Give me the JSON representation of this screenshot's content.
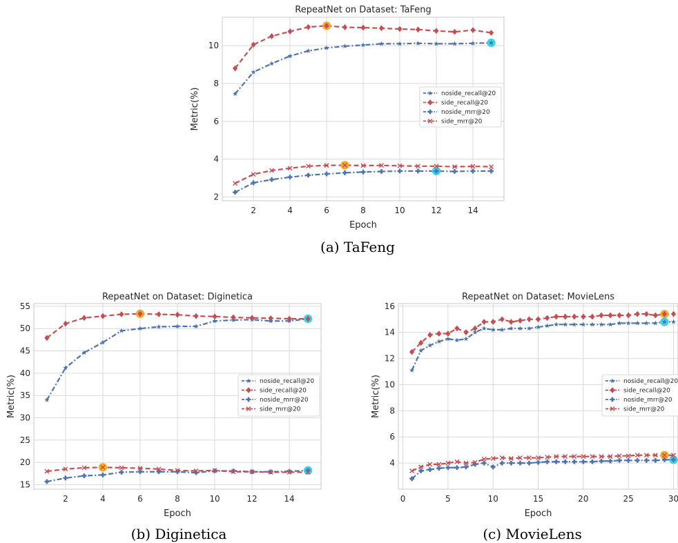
{
  "chart_data": [
    {
      "type": "line",
      "title": "RepeatNet on Dataset: TaFeng",
      "caption": "(a) TaFeng",
      "xlabel": "Epoch",
      "ylabel": "Metric(%)",
      "xlim": [
        0.3,
        15.7
      ],
      "ylim": [
        1.8,
        11.5
      ],
      "xticks": [
        2,
        4,
        6,
        8,
        10,
        12,
        14
      ],
      "yticks": [
        2,
        4,
        6,
        8,
        10
      ],
      "legend_position": "center-right",
      "grid": true,
      "series": [
        {
          "name": "noside_recall@20",
          "color": "#4c72b0",
          "marker": "star",
          "dash": "dashdot",
          "x": [
            1,
            2,
            3,
            4,
            5,
            6,
            7,
            8,
            9,
            10,
            11,
            12,
            13,
            14,
            15
          ],
          "values": [
            7.45,
            8.6,
            9.05,
            9.45,
            9.72,
            9.88,
            9.97,
            10.03,
            10.1,
            10.1,
            10.12,
            10.1,
            10.1,
            10.12,
            10.15
          ]
        },
        {
          "name": "side_recall@20",
          "color": "#c44e52",
          "marker": "diamond",
          "dash": "dashed",
          "x": [
            1,
            2,
            3,
            4,
            5,
            6,
            7,
            8,
            9,
            10,
            11,
            12,
            13,
            14,
            15
          ],
          "values": [
            8.8,
            10.05,
            10.5,
            10.75,
            10.98,
            11.05,
            10.97,
            10.95,
            10.92,
            10.88,
            10.85,
            10.78,
            10.73,
            10.82,
            10.68
          ]
        },
        {
          "name": "noside_mrr@20",
          "color": "#4c72b0",
          "marker": "plus",
          "dash": "dashdot",
          "x": [
            1,
            2,
            3,
            4,
            5,
            6,
            7,
            8,
            9,
            10,
            11,
            12,
            13,
            14,
            15
          ],
          "values": [
            2.25,
            2.75,
            2.92,
            3.05,
            3.15,
            3.22,
            3.28,
            3.32,
            3.35,
            3.37,
            3.37,
            3.37,
            3.35,
            3.37,
            3.37
          ]
        },
        {
          "name": "side_mrr@20",
          "color": "#c44e52",
          "marker": "x",
          "dash": "dashed",
          "x": [
            1,
            2,
            3,
            4,
            5,
            6,
            7,
            8,
            9,
            10,
            11,
            12,
            13,
            14,
            15
          ],
          "values": [
            2.72,
            3.2,
            3.4,
            3.52,
            3.63,
            3.67,
            3.68,
            3.66,
            3.67,
            3.65,
            3.63,
            3.63,
            3.6,
            3.62,
            3.6
          ]
        }
      ],
      "highlights": [
        {
          "x": 6,
          "y": 11.05,
          "color": "#f5a623"
        },
        {
          "x": 15,
          "y": 10.15,
          "color": "#33d1e6"
        },
        {
          "x": 7,
          "y": 3.68,
          "color": "#f5a623"
        },
        {
          "x": 12,
          "y": 3.37,
          "color": "#33d1e6"
        }
      ]
    },
    {
      "type": "line",
      "title": "RepeatNet on Dataset: Diginetica",
      "caption": "(b) Diginetica",
      "xlabel": "Epoch",
      "ylabel": "Metric(%)",
      "xlim": [
        0.3,
        15.7
      ],
      "ylim": [
        14,
        55.6
      ],
      "xticks": [
        2,
        4,
        6,
        8,
        10,
        12,
        14
      ],
      "yticks": [
        15,
        20,
        25,
        30,
        35,
        40,
        45,
        50,
        55
      ],
      "legend_position": "center-right",
      "grid": true,
      "series": [
        {
          "name": "noside_recall@20",
          "color": "#4c72b0",
          "marker": "star",
          "dash": "dashdot",
          "x": [
            1,
            2,
            3,
            4,
            5,
            6,
            7,
            8,
            9,
            10,
            11,
            12,
            13,
            14,
            15
          ],
          "values": [
            34.0,
            41.2,
            44.6,
            46.9,
            49.5,
            50.0,
            50.4,
            50.5,
            50.5,
            51.7,
            51.9,
            52.0,
            51.7,
            51.7,
            52.2
          ]
        },
        {
          "name": "side_recall@20",
          "color": "#c44e52",
          "marker": "diamond",
          "dash": "dashed",
          "x": [
            1,
            2,
            3,
            4,
            5,
            6,
            7,
            8,
            9,
            10,
            11,
            12,
            13,
            14,
            15
          ],
          "values": [
            47.9,
            51.1,
            52.4,
            52.8,
            53.2,
            53.3,
            53.2,
            53.1,
            52.8,
            52.7,
            52.5,
            52.4,
            52.3,
            52.2,
            52.2
          ]
        },
        {
          "name": "noside_mrr@20",
          "color": "#4c72b0",
          "marker": "plus",
          "dash": "dashdot",
          "x": [
            1,
            2,
            3,
            4,
            5,
            6,
            7,
            8,
            9,
            10,
            11,
            12,
            13,
            14,
            15
          ],
          "values": [
            15.7,
            16.5,
            17.0,
            17.2,
            17.8,
            17.9,
            17.9,
            17.9,
            17.7,
            18.1,
            18.1,
            17.9,
            17.9,
            18.0,
            18.2
          ]
        },
        {
          "name": "side_mrr@20",
          "color": "#c44e52",
          "marker": "x",
          "dash": "dashed",
          "x": [
            1,
            2,
            3,
            4,
            5,
            6,
            7,
            8,
            9,
            10,
            11,
            12,
            13,
            14,
            15
          ],
          "values": [
            18.0,
            18.5,
            18.8,
            18.9,
            18.8,
            18.7,
            18.5,
            18.2,
            18.1,
            18.2,
            17.9,
            17.9,
            17.8,
            17.8,
            17.8
          ]
        }
      ],
      "highlights": [
        {
          "x": 6,
          "y": 53.3,
          "color": "#f5a623"
        },
        {
          "x": 15,
          "y": 52.2,
          "color": "#33d1e6"
        },
        {
          "x": 4,
          "y": 18.9,
          "color": "#f5a623"
        },
        {
          "x": 15,
          "y": 18.2,
          "color": "#33d1e6"
        }
      ]
    },
    {
      "type": "line",
      "title": "RepeatNet on Dataset: MovieLens",
      "caption": "(c) MovieLens",
      "xlabel": "Epoch",
      "ylabel": "Metric(%)",
      "xlim": [
        -0.5,
        30.5
      ],
      "ylim": [
        2,
        16.2
      ],
      "xticks": [
        0,
        5,
        10,
        15,
        20,
        25,
        30
      ],
      "yticks": [
        4,
        6,
        8,
        10,
        12,
        14,
        16
      ],
      "legend_position": "center-right",
      "grid": true,
      "series": [
        {
          "name": "noside_recall@20",
          "color": "#4c72b0",
          "marker": "star",
          "dash": "dashdot",
          "x": [
            1,
            2,
            3,
            4,
            5,
            6,
            7,
            8,
            9,
            10,
            11,
            12,
            13,
            14,
            15,
            16,
            17,
            18,
            19,
            20,
            21,
            22,
            23,
            24,
            25,
            26,
            27,
            28,
            29,
            30
          ],
          "values": [
            11.1,
            12.6,
            13.0,
            13.3,
            13.5,
            13.4,
            13.5,
            14.0,
            14.3,
            14.2,
            14.2,
            14.3,
            14.3,
            14.3,
            14.4,
            14.5,
            14.6,
            14.6,
            14.6,
            14.6,
            14.6,
            14.6,
            14.6,
            14.7,
            14.7,
            14.7,
            14.7,
            14.7,
            14.8,
            14.8
          ]
        },
        {
          "name": "side_recall@20",
          "color": "#c44e52",
          "marker": "diamond",
          "dash": "dashed",
          "x": [
            1,
            2,
            3,
            4,
            5,
            6,
            7,
            8,
            9,
            10,
            11,
            12,
            13,
            14,
            15,
            16,
            17,
            18,
            19,
            20,
            21,
            22,
            23,
            24,
            25,
            26,
            27,
            28,
            29,
            30
          ],
          "values": [
            12.5,
            13.2,
            13.8,
            13.9,
            13.9,
            14.3,
            14.0,
            14.3,
            14.8,
            14.8,
            15.0,
            14.8,
            14.9,
            15.0,
            15.0,
            15.1,
            15.2,
            15.2,
            15.2,
            15.2,
            15.2,
            15.3,
            15.3,
            15.3,
            15.3,
            15.4,
            15.4,
            15.3,
            15.4,
            15.4
          ]
        },
        {
          "name": "noside_mrr@20",
          "color": "#4c72b0",
          "marker": "plus",
          "dash": "dashdot",
          "x": [
            1,
            2,
            3,
            4,
            5,
            6,
            7,
            8,
            9,
            10,
            11,
            12,
            13,
            14,
            15,
            16,
            17,
            18,
            19,
            20,
            21,
            22,
            23,
            24,
            25,
            26,
            27,
            28,
            29,
            30
          ],
          "values": [
            2.8,
            3.4,
            3.5,
            3.6,
            3.65,
            3.65,
            3.7,
            3.9,
            4.0,
            3.7,
            4.0,
            4.0,
            4.0,
            4.0,
            4.05,
            4.1,
            4.1,
            4.1,
            4.1,
            4.1,
            4.1,
            4.15,
            4.15,
            4.2,
            4.2,
            4.2,
            4.2,
            4.2,
            4.25,
            4.25
          ]
        },
        {
          "name": "side_mrr@20",
          "color": "#c44e52",
          "marker": "x",
          "dash": "dashed",
          "x": [
            1,
            2,
            3,
            4,
            5,
            6,
            7,
            8,
            9,
            10,
            11,
            12,
            13,
            14,
            15,
            16,
            17,
            18,
            19,
            20,
            21,
            22,
            23,
            24,
            25,
            26,
            27,
            28,
            29,
            30
          ],
          "values": [
            3.4,
            3.7,
            3.9,
            3.9,
            4.0,
            4.1,
            4.0,
            4.05,
            4.3,
            4.35,
            4.4,
            4.35,
            4.4,
            4.4,
            4.4,
            4.45,
            4.5,
            4.5,
            4.5,
            4.5,
            4.5,
            4.5,
            4.5,
            4.55,
            4.55,
            4.6,
            4.6,
            4.6,
            4.6,
            4.6
          ]
        }
      ],
      "highlights": [
        {
          "x": 29,
          "y": 15.4,
          "color": "#f5a623"
        },
        {
          "x": 29,
          "y": 14.8,
          "color": "#33d1e6"
        },
        {
          "x": 29,
          "y": 4.6,
          "color": "#f5a623"
        },
        {
          "x": 30,
          "y": 4.25,
          "color": "#33d1e6"
        }
      ]
    }
  ]
}
